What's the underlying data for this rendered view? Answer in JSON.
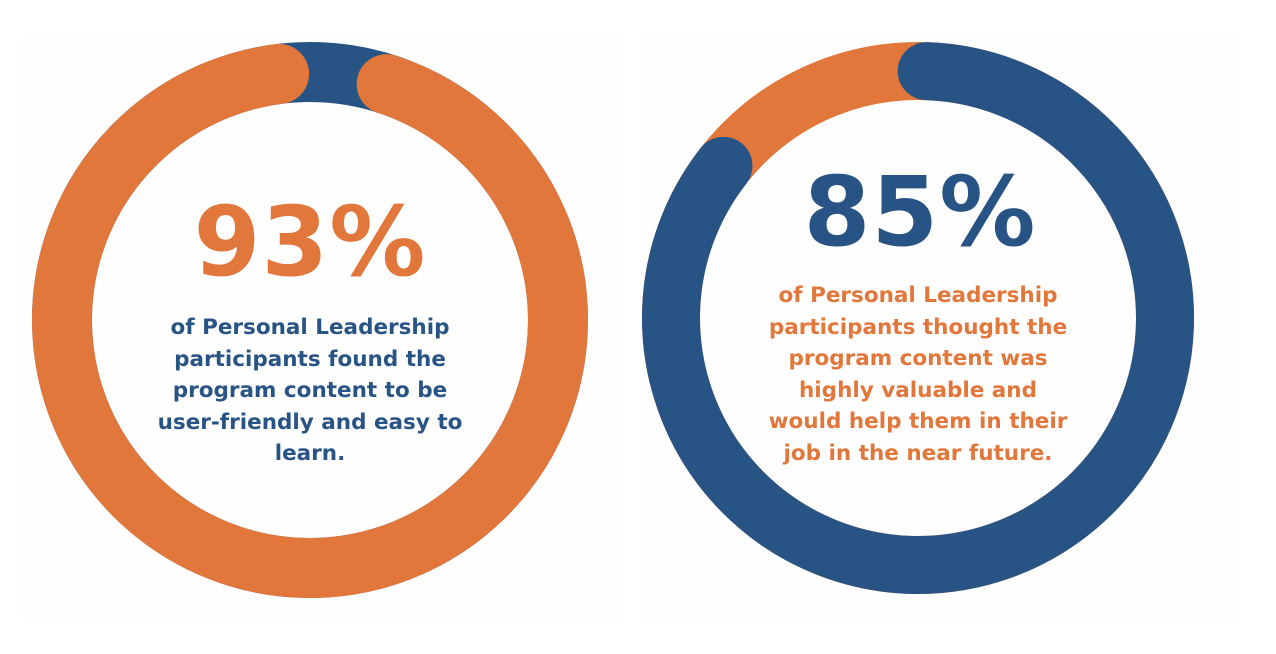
{
  "colors": {
    "orange": "#E2773B",
    "blue": "#285485"
  },
  "chart_data": [
    {
      "type": "pie",
      "variant": "donut",
      "percent": 93,
      "label": "93%",
      "caption": "of Personal Leadership participants found the program content to be user-friendly and easy to learn.",
      "caption_lines": [
        "of Personal Leadership",
        "participants found the",
        "program content to be",
        "user-friendly and easy to",
        "learn."
      ],
      "slices": [
        {
          "value": 93,
          "color": "#E2773B"
        },
        {
          "value": 7,
          "color": "#285485"
        }
      ],
      "number_color": "#E2773B",
      "caption_color": "#285485"
    },
    {
      "type": "pie",
      "variant": "donut",
      "percent": 85,
      "label": "85%",
      "caption": "of Personal Leadership participants thought the program content was highly valuable and would help them in their job in the near future.",
      "caption_lines": [
        "of Personal Leadership",
        "participants thought the",
        "program content was",
        "highly valuable and",
        "would help them in their",
        "job in the near future."
      ],
      "slices": [
        {
          "value": 85,
          "color": "#285485"
        },
        {
          "value": 15,
          "color": "#E2773B"
        }
      ],
      "number_color": "#285485",
      "caption_color": "#E2773B"
    }
  ]
}
